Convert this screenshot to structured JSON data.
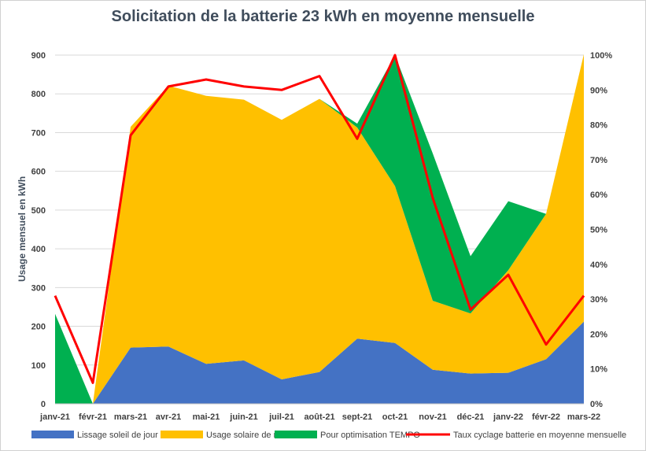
{
  "chart_data": {
    "type": "area",
    "title": "Solicitation  de la batterie 23 kWh en moyenne mensuelle",
    "ylabel": "Usage  mensuel en kWh",
    "ylim": [
      0,
      900
    ],
    "y_ticks": [
      "0",
      "100",
      "200",
      "300",
      "400",
      "500",
      "600",
      "700",
      "800",
      "900"
    ],
    "y2lim": [
      0,
      100
    ],
    "y2_ticks": [
      "0%",
      "10%",
      "20%",
      "30%",
      "40%",
      "50%",
      "60%",
      "70%",
      "80%",
      "90%",
      "100%"
    ],
    "categories": [
      "janv-21",
      "févr-21",
      "mars-21",
      "avr-21",
      "mai-21",
      "juin-21",
      "juil-21",
      "août-21",
      "sept-21",
      "oct-21",
      "nov-21",
      "déc-21",
      "janv-22",
      "févr-22",
      "mars-22"
    ],
    "stacked": true,
    "grid": true,
    "legend_position": "bottom",
    "series": [
      {
        "name": "Lissage soleil de jour",
        "kind": "area",
        "color": "#4472c4",
        "values": [
          0,
          0,
          145,
          148,
          103,
          112,
          63,
          82,
          168,
          157,
          88,
          78,
          80,
          115,
          212
        ]
      },
      {
        "name": "Usage solaire de nuit",
        "kind": "area",
        "color": "#ffc000",
        "values": [
          0,
          0,
          570,
          673,
          692,
          673,
          670,
          705,
          545,
          405,
          178,
          155,
          265,
          375,
          690
        ]
      },
      {
        "name": "Pour optimisation TEMPO",
        "kind": "area",
        "color": "#00b050",
        "values": [
          232,
          0,
          0,
          0,
          0,
          0,
          0,
          0,
          10,
          338,
          380,
          148,
          178,
          0,
          0
        ]
      },
      {
        "name": "Taux cyclage batterie en moyenne mensuelle",
        "kind": "line",
        "axis": "secondary",
        "color": "#ff0000",
        "values": [
          31,
          6,
          77,
          91,
          93,
          91,
          90,
          94,
          76,
          100,
          59,
          27,
          37,
          17,
          31
        ]
      }
    ]
  }
}
